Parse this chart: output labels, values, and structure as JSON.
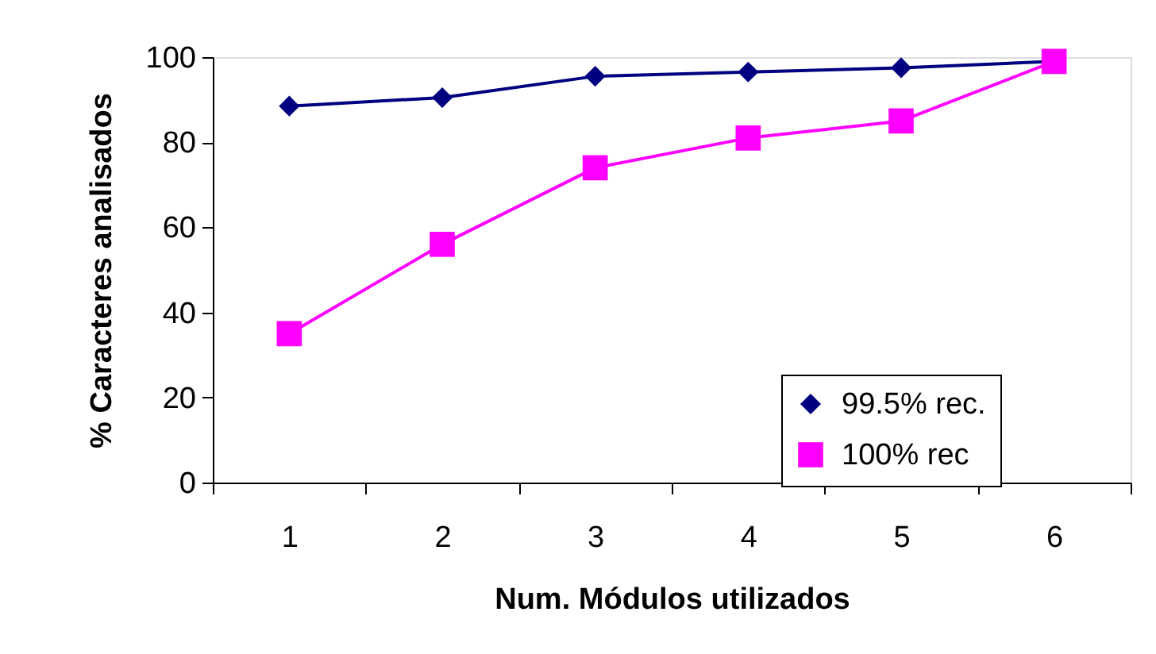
{
  "chart_data": {
    "type": "line",
    "xlabel": "Num. Módulos utilizados",
    "ylabel": "% Caracteres analisados",
    "categories": [
      "1",
      "2",
      "3",
      "4",
      "5",
      "6"
    ],
    "series": [
      {
        "name": "99.5% rec.",
        "color": "#000080",
        "marker": "diamond",
        "values": [
          88.5,
          90.5,
          95.5,
          96.5,
          97.5,
          99
        ]
      },
      {
        "name": "100% rec",
        "color": "#ff00ff",
        "marker": "square",
        "values": [
          35,
          56,
          74,
          81,
          85,
          99
        ]
      }
    ],
    "ylim": [
      0,
      100
    ],
    "yticks": [
      0,
      20,
      40,
      60,
      80,
      100
    ],
    "legend": "bottom right",
    "line_style": "solid"
  }
}
